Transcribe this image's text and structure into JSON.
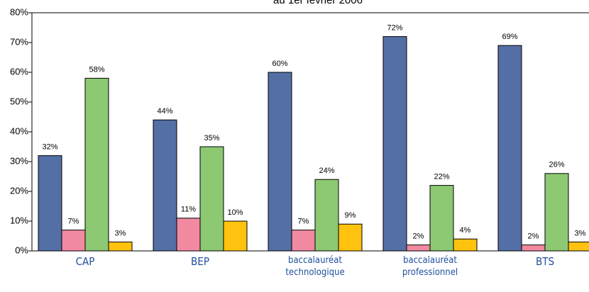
{
  "chart_data": {
    "type": "bar",
    "title": "au 1er février 2006",
    "categories": [
      "CAP",
      "BEP",
      "baccalauréat technologique",
      "baccalauréat professionnel",
      "BTS"
    ],
    "series": [
      {
        "color": "#546fa5",
        "values": [
          32,
          44,
          60,
          72,
          69
        ],
        "value_labels": [
          "32%",
          "44%",
          "60%",
          "72%",
          "69%"
        ]
      },
      {
        "color": "#f18aa0",
        "values": [
          7,
          11,
          7,
          2,
          2
        ],
        "value_labels": [
          "7%",
          "11%",
          "7%",
          "2%",
          "2%"
        ]
      },
      {
        "color": "#8dc872",
        "values": [
          58,
          35,
          24,
          22,
          26
        ],
        "value_labels": [
          "58%",
          "35%",
          "24%",
          "22%",
          "26%"
        ]
      },
      {
        "color": "#ffc20e",
        "values": [
          3,
          10,
          9,
          4,
          3
        ],
        "value_labels": [
          "3%",
          "10%",
          "9%",
          "4%",
          "3%"
        ]
      }
    ],
    "ylim": [
      0,
      80
    ],
    "yticks": [
      {
        "value": 0,
        "label": "0%"
      },
      {
        "value": 10,
        "label": "10%"
      },
      {
        "value": 20,
        "label": "20%"
      },
      {
        "value": 30,
        "label": "30%"
      },
      {
        "value": 40,
        "label": "40%"
      },
      {
        "value": 50,
        "label": "50%"
      },
      {
        "value": 60,
        "label": "60%"
      },
      {
        "value": 70,
        "label": "70%"
      },
      {
        "value": 80,
        "label": "80%"
      }
    ],
    "grid": false
  }
}
